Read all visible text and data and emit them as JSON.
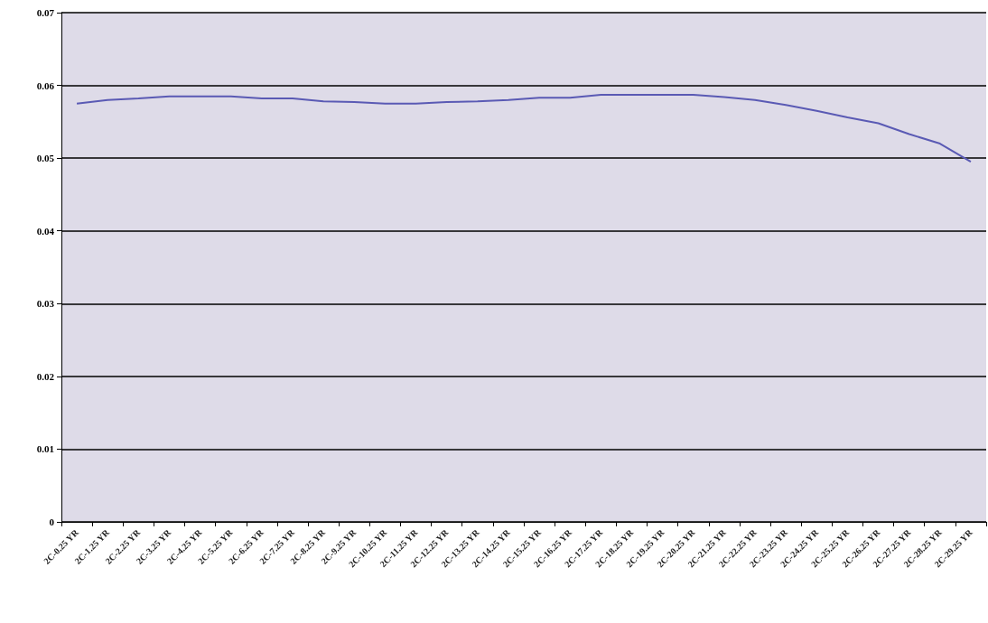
{
  "chart_data": {
    "type": "line",
    "categories": [
      "2C-0.25 YR",
      "2C-1.25 YR",
      "2C-2.25 YR",
      "2C-3.25 YR",
      "2C-4.25 YR",
      "2C-5.25 YR",
      "2C-6.25 YR",
      "2C-7.25 YR",
      "2C-8.25 YR",
      "2C-9.25 YR",
      "2C-10.25 YR",
      "2C-11.25 YR",
      "2C-12.25 YR",
      "2C-13.25 YR",
      "2C-14.25 YR",
      "2C-15.25 YR",
      "2C-16.25 YR",
      "2C-17.25 YR",
      "2C-18.25 YR",
      "2C-19.25 YR",
      "2C-20.25 YR",
      "2C-21.25 YR",
      "2C-22.25 YR",
      "2C-23.25 YR",
      "2C-24.25 YR",
      "2C-25.25 YR",
      "2C-26.25 YR",
      "2C-27.25 YR",
      "2C-28.25 YR",
      "2C-29.25 YR"
    ],
    "series": [
      {
        "color": "#5a5ab4",
        "values": [
          0.0575,
          0.058,
          0.0582,
          0.0585,
          0.0585,
          0.0585,
          0.0582,
          0.0582,
          0.0578,
          0.0577,
          0.0575,
          0.0575,
          0.0577,
          0.0578,
          0.058,
          0.0583,
          0.0583,
          0.0587,
          0.0587,
          0.0587,
          0.0587,
          0.0584,
          0.058,
          0.0573,
          0.0565,
          0.0556,
          0.0548,
          0.0533,
          0.052,
          0.0495
        ]
      }
    ],
    "ylim": [
      0,
      0.07
    ],
    "yticks": [
      0,
      0.01,
      0.02,
      0.03,
      0.04,
      0.05,
      0.06,
      0.07
    ],
    "grid": "y",
    "marker": "none",
    "line_style": "solid"
  }
}
